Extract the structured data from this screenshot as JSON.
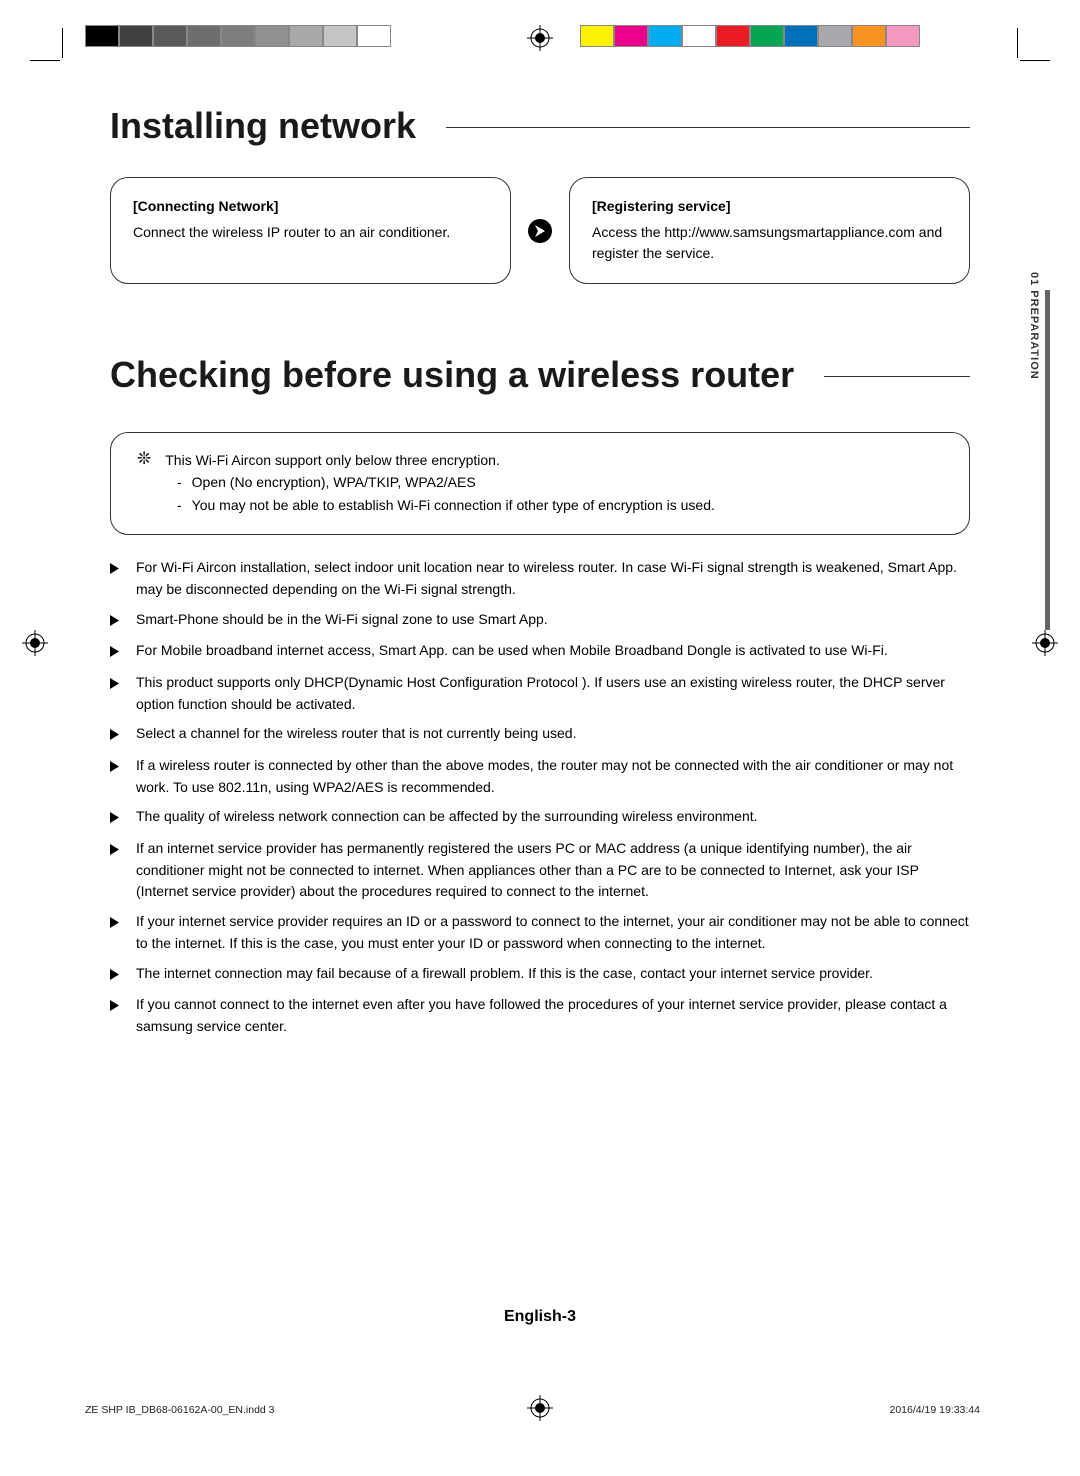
{
  "colorbars": {
    "left": [
      "#000000",
      "#404040",
      "#5a5a5a",
      "#6e6e6e",
      "#7e7e7e",
      "#909090",
      "#a8a8a8",
      "#c4c4c4",
      "#ffffff"
    ],
    "right": [
      "#fff200",
      "#ec008c",
      "#00aeef",
      "#ffffff",
      "#ed1c24",
      "#00a651",
      "#0072bc",
      "#a7a9ac",
      "#f7941d",
      "#f49ac1"
    ]
  },
  "title1": "Installing network",
  "box1": {
    "title": "[Connecting Network]",
    "body": "Connect the wireless IP router to an air conditioner."
  },
  "box2": {
    "title": "[Registering service]",
    "body": "Access the  http://www.samsungsmartappliance.com and register the service."
  },
  "sidetab": "01  PREPARATION",
  "title2": "Checking before using a wireless router",
  "info": {
    "line": "This Wi-Fi Aircon support only below three encryption.",
    "subs": [
      "Open (No encryption), WPA/TKIP, WPA2/AES",
      "You may not be able to establish Wi-Fi connection if other type of encryption is used."
    ]
  },
  "bullets": [
    "For Wi-Fi Aircon installation, select indoor unit location near to wireless router. In case Wi-Fi signal strength is weakened, Smart App. may be disconnected depending on the Wi-Fi signal strength.",
    "Smart-Phone should be in the Wi-Fi signal zone to use Smart App.",
    "For Mobile broadband internet access, Smart App. can be used when Mobile Broadband Dongle is activated to use Wi-Fi.",
    "This product supports only DHCP(Dynamic Host Configuration Protocol ). If users use an existing wireless router, the DHCP server option function should be activated.",
    "Select a channel for the wireless router that is not currently being used.",
    "If a wireless router is connected by other than the above modes, the router may not be connected with the air conditioner or may not work. To use 802.11n, using WPA2/AES is recommended.",
    "The quality of wireless network connection can be affected by the surrounding wireless environment.",
    "If an internet service provider has permanently registered the users PC or MAC address (a unique identifying number), the air conditioner might not be connected to internet. When appliances other than a PC are to be connected to Internet, ask your ISP (Internet service provider) about the procedures required to connect to the internet.",
    "If your internet service provider requires an ID or a password to connect to the internet, your air conditioner may not be able to connect to the internet. If this is the case, you must enter your ID or password when connecting to the internet.",
    "The internet connection may fail because of a firewall problem. If this is the case, contact your internet service provider.",
    "If you cannot connect to the internet even after you have followed the procedures of your internet service provider, please contact a samsung service center."
  ],
  "footer": "English-3",
  "imprint": {
    "file": "ZE SHP IB_DB68-06162A-00_EN.indd   3",
    "date": "2016/4/19   19:33:44"
  }
}
